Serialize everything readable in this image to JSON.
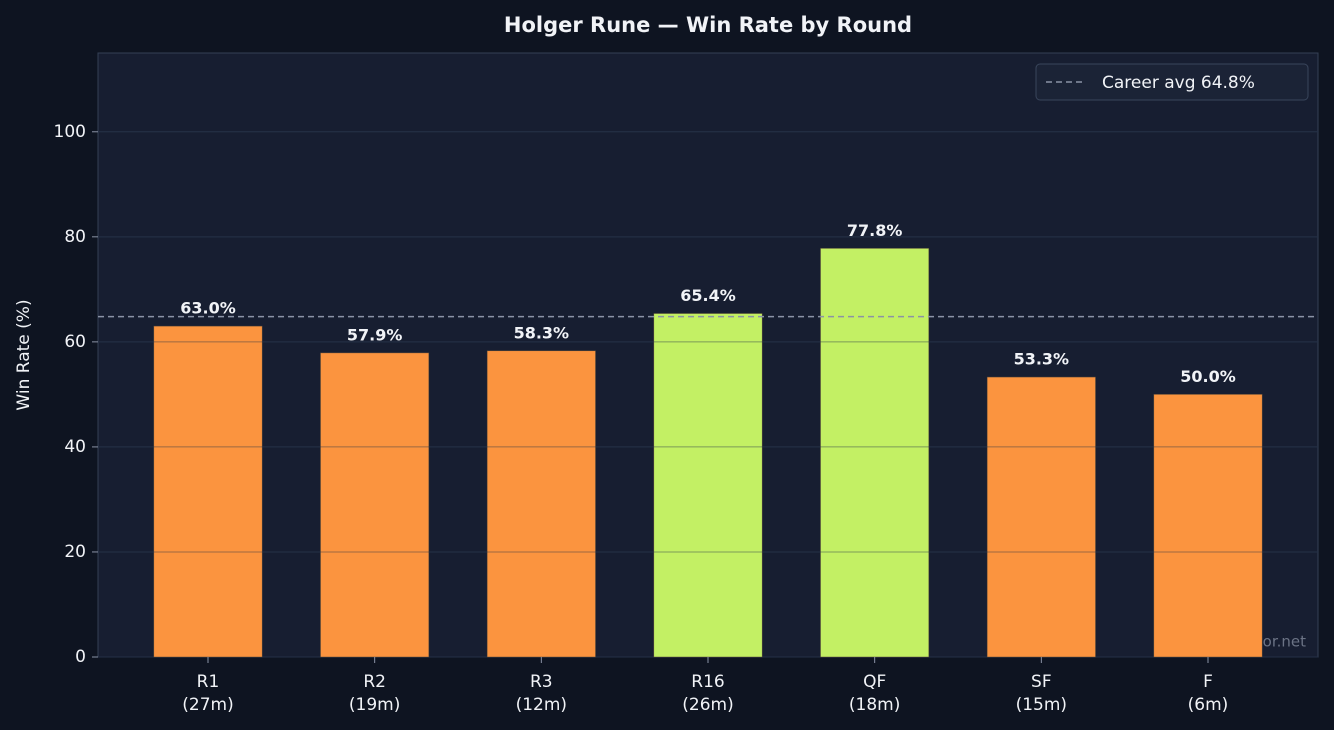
{
  "chart_data": {
    "type": "bar",
    "title": "Holger Rune — Win Rate by Round",
    "y_label": "Win Rate (%)",
    "categories": [
      "R1",
      "R2",
      "R3",
      "R16",
      "QF",
      "SF",
      "F"
    ],
    "category_notes": [
      "(27m)",
      "(19m)",
      "(12m)",
      "(26m)",
      "(18m)",
      "(15m)",
      "(6m)"
    ],
    "values": [
      63.0,
      57.9,
      58.3,
      65.4,
      77.8,
      53.3,
      50.0
    ],
    "value_labels": [
      "63.0%",
      "57.9%",
      "58.3%",
      "65.4%",
      "77.8%",
      "53.3%",
      "50.0%"
    ],
    "colors": [
      "#fb943f",
      "#fb943f",
      "#fb943f",
      "#c3f064",
      "#c3f064",
      "#fb943f",
      "#fb943f"
    ],
    "reference_line": {
      "value": 64.8,
      "label": "Career avg 64.8%",
      "color": "#8b93a6"
    },
    "legend": "upper right",
    "ylim": [
      0,
      115
    ],
    "yticks": [
      0,
      20,
      40,
      60,
      80,
      100
    ],
    "grid": true,
    "watermark": "tennispredictor.net"
  }
}
